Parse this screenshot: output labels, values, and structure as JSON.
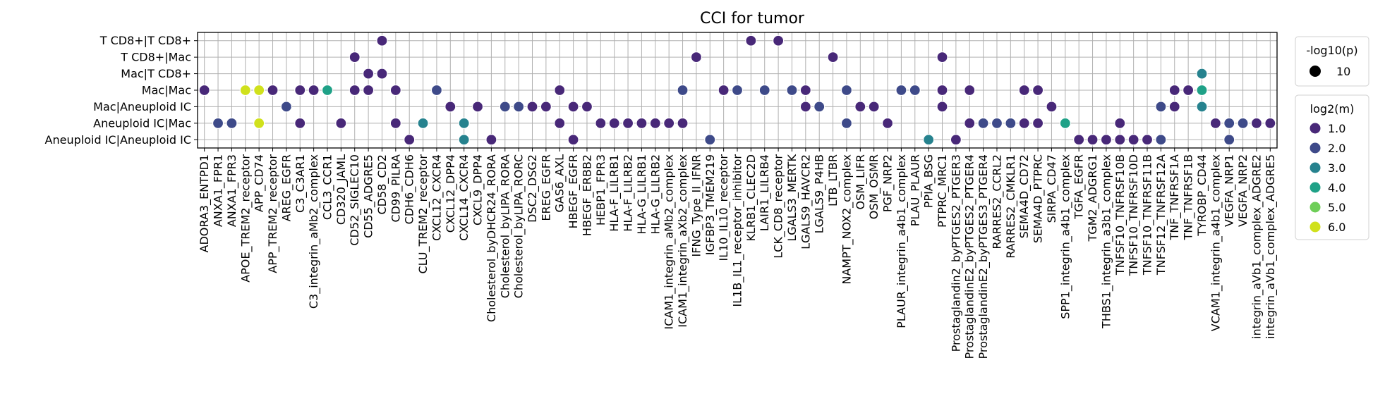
{
  "chart_data": {
    "type": "scatter",
    "title": "CCI for tumor",
    "xlabel": "",
    "ylabel": "",
    "grid": true,
    "legend_placement": "right",
    "y_categories": [
      "T CD8+|T CD8+",
      "T CD8+|Mac",
      "Mac|T CD8+",
      "Mac|Mac",
      "Mac|Aneuploid IC",
      "Aneuploid IC|Mac",
      "Aneuploid IC|Aneuploid IC"
    ],
    "x_categories": [
      "ADORA3_ENTPD1",
      "ANXA1_FPR1",
      "ANXA1_FPR3",
      "APOE_TREM2_receptor",
      "APP_CD74",
      "APP_TREM2_receptor",
      "AREG_EGFR",
      "C3_C3AR1",
      "C3_integrin_aMb2_complex",
      "CCL3_CCR1",
      "CD320_JAML",
      "CD52_SIGLEC10",
      "CD55_ADGRE5",
      "CD58_CD2",
      "CD99_PILRA",
      "CDH6_CDH6",
      "CLU_TREM2_receptor",
      "CXCL12_CXCR4",
      "CXCL12_DPP4",
      "CXCL14_CXCR4",
      "CXCL9_DPP4",
      "Cholesterol_byDHCR24_RORA",
      "Cholesterol_byLIPA_RORA",
      "Cholesterol_byLIPA_RORC",
      "DSC2_DSG2",
      "EREG_EGFR",
      "GAS6_AXL",
      "HBEGF_EGFR",
      "HBEGF_ERBB2",
      "HEBP1_FPR3",
      "HLA-F_LILRB1",
      "HLA-F_LILRB2",
      "HLA-G_LILRB1",
      "HLA-G_LILRB2",
      "ICAM1_integrin_aMb2_complex",
      "ICAM1_integrin_aXb2_complex",
      "IFNG_Type_II_IFNR",
      "IGFBP3_TMEM219",
      "IL10_IL10_receptor",
      "IL1B_IL1_receptor_inhibitor",
      "KLRB1_CLEC2D",
      "LAIR1_LILRB4",
      "LCK_CD8_receptor",
      "LGALS3_MERTK",
      "LGALS9_HAVCR2",
      "LGALS9_P4HB",
      "LTB_LTBR",
      "NAMPT_NOX2_complex",
      "OSM_LIFR",
      "OSM_OSMR",
      "PGF_NRP2",
      "PLAUR_integrin_a4b1_complex",
      "PLAU_PLAUR",
      "PPIA_BSG",
      "PTPRC_MRC1",
      "Prostaglandin2_byPTGES2_PTGER3",
      "ProstaglandinE2_byPTGES2_PTGER4",
      "ProstaglandinE2_byPTGES3_PTGER4",
      "RARRES2_CCRL2",
      "RARRES2_CMKLR1",
      "SEMA4D_CD72",
      "SEMA4D_PTPRC",
      "SIRPA_CD47",
      "SPP1_integrin_a4b1_complex",
      "TGFA_EGFR",
      "TGM2_ADGRG1",
      "THBS1_integrin_a3b1_complex",
      "TNFSF10_TNFRSF10B",
      "TNFSF10_TNFRSF10D",
      "TNFSF10_TNFRSF11B",
      "TNFSF12_TNFRSF12A",
      "TNF_TNFRSF1A",
      "TNF_TNFRSF1B",
      "TYROBP_CD44",
      "VCAM1_integrin_a4b1_complex",
      "VEGFA_NRP1",
      "VEGFA_NRP2",
      "integrin_aVb1_complex_ADGRE2",
      "integrin_aVb1_complex_ADGRE5"
    ],
    "points": [
      {
        "x": "ADORA3_ENTPD1",
        "y": "Mac|Mac",
        "log2m": 1.0
      },
      {
        "x": "ANXA1_FPR1",
        "y": "Aneuploid IC|Mac",
        "log2m": 2.0
      },
      {
        "x": "ANXA1_FPR3",
        "y": "Aneuploid IC|Mac",
        "log2m": 2.0
      },
      {
        "x": "APOE_TREM2_receptor",
        "y": "Mac|Mac",
        "log2m": 6.0
      },
      {
        "x": "APP_CD74",
        "y": "Mac|Mac",
        "log2m": 6.0
      },
      {
        "x": "APP_CD74",
        "y": "Aneuploid IC|Mac",
        "log2m": 6.0
      },
      {
        "x": "APP_TREM2_receptor",
        "y": "Mac|Mac",
        "log2m": 1.0
      },
      {
        "x": "AREG_EGFR",
        "y": "Mac|Aneuploid IC",
        "log2m": 2.0
      },
      {
        "x": "C3_C3AR1",
        "y": "Mac|Mac",
        "log2m": 1.0
      },
      {
        "x": "C3_C3AR1",
        "y": "Aneuploid IC|Mac",
        "log2m": 1.0
      },
      {
        "x": "C3_integrin_aMb2_complex",
        "y": "Mac|Mac",
        "log2m": 1.0
      },
      {
        "x": "CCL3_CCR1",
        "y": "Mac|Mac",
        "log2m": 4.0
      },
      {
        "x": "CD320_JAML",
        "y": "Aneuploid IC|Mac",
        "log2m": 1.0
      },
      {
        "x": "CD52_SIGLEC10",
        "y": "T CD8+|Mac",
        "log2m": 1.0
      },
      {
        "x": "CD52_SIGLEC10",
        "y": "Mac|Mac",
        "log2m": 1.0
      },
      {
        "x": "CD55_ADGRE5",
        "y": "Mac|T CD8+",
        "log2m": 1.0
      },
      {
        "x": "CD55_ADGRE5",
        "y": "Mac|Mac",
        "log2m": 1.0
      },
      {
        "x": "CD58_CD2",
        "y": "T CD8+|T CD8+",
        "log2m": 1.0
      },
      {
        "x": "CD58_CD2",
        "y": "Mac|T CD8+",
        "log2m": 1.0
      },
      {
        "x": "CD99_PILRA",
        "y": "Mac|Mac",
        "log2m": 1.0
      },
      {
        "x": "CD99_PILRA",
        "y": "Aneuploid IC|Mac",
        "log2m": 1.0
      },
      {
        "x": "CDH6_CDH6",
        "y": "Aneuploid IC|Aneuploid IC",
        "log2m": 1.0
      },
      {
        "x": "CLU_TREM2_receptor",
        "y": "Aneuploid IC|Mac",
        "log2m": 3.0
      },
      {
        "x": "CXCL12_CXCR4",
        "y": "Mac|Mac",
        "log2m": 2.0
      },
      {
        "x": "CXCL12_DPP4",
        "y": "Mac|Aneuploid IC",
        "log2m": 1.0
      },
      {
        "x": "CXCL14_CXCR4",
        "y": "Aneuploid IC|Mac",
        "log2m": 3.0
      },
      {
        "x": "CXCL14_CXCR4",
        "y": "Aneuploid IC|Aneuploid IC",
        "log2m": 3.0
      },
      {
        "x": "CXCL9_DPP4",
        "y": "Mac|Aneuploid IC",
        "log2m": 1.0
      },
      {
        "x": "Cholesterol_byDHCR24_RORA",
        "y": "Aneuploid IC|Aneuploid IC",
        "log2m": 1.0
      },
      {
        "x": "Cholesterol_byLIPA_RORA",
        "y": "Mac|Aneuploid IC",
        "log2m": 2.0
      },
      {
        "x": "Cholesterol_byLIPA_RORC",
        "y": "Mac|Aneuploid IC",
        "log2m": 2.0
      },
      {
        "x": "DSC2_DSG2",
        "y": "Mac|Aneuploid IC",
        "log2m": 1.0
      },
      {
        "x": "EREG_EGFR",
        "y": "Mac|Aneuploid IC",
        "log2m": 1.0
      },
      {
        "x": "GAS6_AXL",
        "y": "Mac|Mac",
        "log2m": 1.0
      },
      {
        "x": "GAS6_AXL",
        "y": "Aneuploid IC|Mac",
        "log2m": 1.0
      },
      {
        "x": "HBEGF_EGFR",
        "y": "Mac|Aneuploid IC",
        "log2m": 1.0
      },
      {
        "x": "HBEGF_EGFR",
        "y": "Aneuploid IC|Aneuploid IC",
        "log2m": 1.0
      },
      {
        "x": "HBEGF_ERBB2",
        "y": "Mac|Aneuploid IC",
        "log2m": 1.0
      },
      {
        "x": "HEBP1_FPR3",
        "y": "Aneuploid IC|Mac",
        "log2m": 1.0
      },
      {
        "x": "HLA-F_LILRB1",
        "y": "Aneuploid IC|Mac",
        "log2m": 1.0
      },
      {
        "x": "HLA-F_LILRB2",
        "y": "Aneuploid IC|Mac",
        "log2m": 1.0
      },
      {
        "x": "HLA-G_LILRB1",
        "y": "Aneuploid IC|Mac",
        "log2m": 1.0
      },
      {
        "x": "HLA-G_LILRB2",
        "y": "Aneuploid IC|Mac",
        "log2m": 1.0
      },
      {
        "x": "ICAM1_integrin_aMb2_complex",
        "y": "Aneuploid IC|Mac",
        "log2m": 1.0
      },
      {
        "x": "ICAM1_integrin_aXb2_complex",
        "y": "Mac|Mac",
        "log2m": 2.0
      },
      {
        "x": "ICAM1_integrin_aXb2_complex",
        "y": "Aneuploid IC|Mac",
        "log2m": 1.0
      },
      {
        "x": "IFNG_Type_II_IFNR",
        "y": "T CD8+|Mac",
        "log2m": 1.0
      },
      {
        "x": "IGFBP3_TMEM219",
        "y": "Aneuploid IC|Aneuploid IC",
        "log2m": 2.0
      },
      {
        "x": "IL10_IL10_receptor",
        "y": "Mac|Mac",
        "log2m": 1.0
      },
      {
        "x": "IL1B_IL1_receptor_inhibitor",
        "y": "Mac|Mac",
        "log2m": 2.0
      },
      {
        "x": "KLRB1_CLEC2D",
        "y": "T CD8+|T CD8+",
        "log2m": 1.0
      },
      {
        "x": "LAIR1_LILRB4",
        "y": "Mac|Mac",
        "log2m": 2.0
      },
      {
        "x": "LCK_CD8_receptor",
        "y": "T CD8+|T CD8+",
        "log2m": 1.0
      },
      {
        "x": "LGALS3_MERTK",
        "y": "Mac|Mac",
        "log2m": 2.0
      },
      {
        "x": "LGALS9_HAVCR2",
        "y": "Mac|Mac",
        "log2m": 1.0
      },
      {
        "x": "LGALS9_HAVCR2",
        "y": "Mac|Aneuploid IC",
        "log2m": 1.0
      },
      {
        "x": "LGALS9_P4HB",
        "y": "Mac|Aneuploid IC",
        "log2m": 2.0
      },
      {
        "x": "LTB_LTBR",
        "y": "T CD8+|Mac",
        "log2m": 1.0
      },
      {
        "x": "NAMPT_NOX2_complex",
        "y": "Mac|Mac",
        "log2m": 2.0
      },
      {
        "x": "NAMPT_NOX2_complex",
        "y": "Aneuploid IC|Mac",
        "log2m": 2.0
      },
      {
        "x": "OSM_LIFR",
        "y": "Mac|Aneuploid IC",
        "log2m": 1.0
      },
      {
        "x": "OSM_OSMR",
        "y": "Mac|Aneuploid IC",
        "log2m": 1.0
      },
      {
        "x": "PGF_NRP2",
        "y": "Aneuploid IC|Mac",
        "log2m": 1.0
      },
      {
        "x": "PLAUR_integrin_a4b1_complex",
        "y": "Mac|Mac",
        "log2m": 2.0
      },
      {
        "x": "PLAU_PLAUR",
        "y": "Mac|Mac",
        "log2m": 2.0
      },
      {
        "x": "PPIA_BSG",
        "y": "Aneuploid IC|Aneuploid IC",
        "log2m": 3.0
      },
      {
        "x": "PTPRC_MRC1",
        "y": "T CD8+|Mac",
        "log2m": 1.0
      },
      {
        "x": "PTPRC_MRC1",
        "y": "Mac|Mac",
        "log2m": 1.0
      },
      {
        "x": "PTPRC_MRC1",
        "y": "Mac|Aneuploid IC",
        "log2m": 1.0
      },
      {
        "x": "Prostaglandin2_byPTGES2_PTGER3",
        "y": "Aneuploid IC|Aneuploid IC",
        "log2m": 1.0
      },
      {
        "x": "ProstaglandinE2_byPTGES2_PTGER4",
        "y": "Mac|Mac",
        "log2m": 1.0
      },
      {
        "x": "ProstaglandinE2_byPTGES2_PTGER4",
        "y": "Aneuploid IC|Mac",
        "log2m": 1.0
      },
      {
        "x": "ProstaglandinE2_byPTGES3_PTGER4",
        "y": "Aneuploid IC|Mac",
        "log2m": 2.0
      },
      {
        "x": "RARRES2_CCRL2",
        "y": "Aneuploid IC|Mac",
        "log2m": 2.0
      },
      {
        "x": "RARRES2_CMKLR1",
        "y": "Aneuploid IC|Mac",
        "log2m": 2.0
      },
      {
        "x": "SEMA4D_CD72",
        "y": "Mac|Mac",
        "log2m": 1.0
      },
      {
        "x": "SEMA4D_CD72",
        "y": "Aneuploid IC|Mac",
        "log2m": 1.0
      },
      {
        "x": "SEMA4D_PTPRC",
        "y": "Mac|Mac",
        "log2m": 1.0
      },
      {
        "x": "SEMA4D_PTPRC",
        "y": "Aneuploid IC|Mac",
        "log2m": 1.0
      },
      {
        "x": "SIRPA_CD47",
        "y": "Mac|Aneuploid IC",
        "log2m": 1.0
      },
      {
        "x": "SPP1_integrin_a4b1_complex",
        "y": "Aneuploid IC|Mac",
        "log2m": 4.0
      },
      {
        "x": "TGFA_EGFR",
        "y": "Aneuploid IC|Aneuploid IC",
        "log2m": 1.0
      },
      {
        "x": "TGM2_ADGRG1",
        "y": "Aneuploid IC|Aneuploid IC",
        "log2m": 1.0
      },
      {
        "x": "THBS1_integrin_a3b1_complex",
        "y": "Aneuploid IC|Aneuploid IC",
        "log2m": 1.0
      },
      {
        "x": "TNFSF10_TNFRSF10B",
        "y": "Aneuploid IC|Mac",
        "log2m": 1.0
      },
      {
        "x": "TNFSF10_TNFRSF10B",
        "y": "Aneuploid IC|Aneuploid IC",
        "log2m": 1.0
      },
      {
        "x": "TNFSF10_TNFRSF10D",
        "y": "Aneuploid IC|Aneuploid IC",
        "log2m": 1.0
      },
      {
        "x": "TNFSF10_TNFRSF11B",
        "y": "Aneuploid IC|Aneuploid IC",
        "log2m": 1.0
      },
      {
        "x": "TNFSF12_TNFRSF12A",
        "y": "Mac|Aneuploid IC",
        "log2m": 2.0
      },
      {
        "x": "TNFSF12_TNFRSF12A",
        "y": "Aneuploid IC|Aneuploid IC",
        "log2m": 2.0
      },
      {
        "x": "TNF_TNFRSF1A",
        "y": "Mac|Mac",
        "log2m": 1.0
      },
      {
        "x": "TNF_TNFRSF1A",
        "y": "Mac|Aneuploid IC",
        "log2m": 1.0
      },
      {
        "x": "TNF_TNFRSF1B",
        "y": "Mac|Mac",
        "log2m": 1.0
      },
      {
        "x": "TYROBP_CD44",
        "y": "Mac|T CD8+",
        "log2m": 3.0
      },
      {
        "x": "TYROBP_CD44",
        "y": "Mac|Mac",
        "log2m": 4.0
      },
      {
        "x": "TYROBP_CD44",
        "y": "Mac|Aneuploid IC",
        "log2m": 3.0
      },
      {
        "x": "VCAM1_integrin_a4b1_complex",
        "y": "Aneuploid IC|Mac",
        "log2m": 1.0
      },
      {
        "x": "VEGFA_NRP1",
        "y": "Aneuploid IC|Mac",
        "log2m": 2.0
      },
      {
        "x": "VEGFA_NRP1",
        "y": "Aneuploid IC|Aneuploid IC",
        "log2m": 2.0
      },
      {
        "x": "VEGFA_NRP2",
        "y": "Aneuploid IC|Mac",
        "log2m": 2.0
      },
      {
        "x": "integrin_aVb1_complex_ADGRE2",
        "y": "Aneuploid IC|Mac",
        "log2m": 1.0
      },
      {
        "x": "integrin_aVb1_complex_ADGRE5",
        "y": "Aneuploid IC|Mac",
        "log2m": 1.0
      }
    ],
    "size_legend": {
      "title": "-log10(p)",
      "entries": [
        {
          "label": "10",
          "value": 10
        }
      ]
    },
    "color_legend": {
      "title": "log2(m)",
      "entries": [
        {
          "label": "1.0",
          "value": 1.0,
          "color": "#482878"
        },
        {
          "label": "2.0",
          "value": 2.0,
          "color": "#3e4a89"
        },
        {
          "label": "3.0",
          "value": 3.0,
          "color": "#26828e"
        },
        {
          "label": "4.0",
          "value": 4.0,
          "color": "#1fa187"
        },
        {
          "label": "5.0",
          "value": 5.0,
          "color": "#6ece58"
        },
        {
          "label": "6.0",
          "value": 6.0,
          "color": "#d0e11c"
        }
      ]
    },
    "colormap": "viridis"
  }
}
